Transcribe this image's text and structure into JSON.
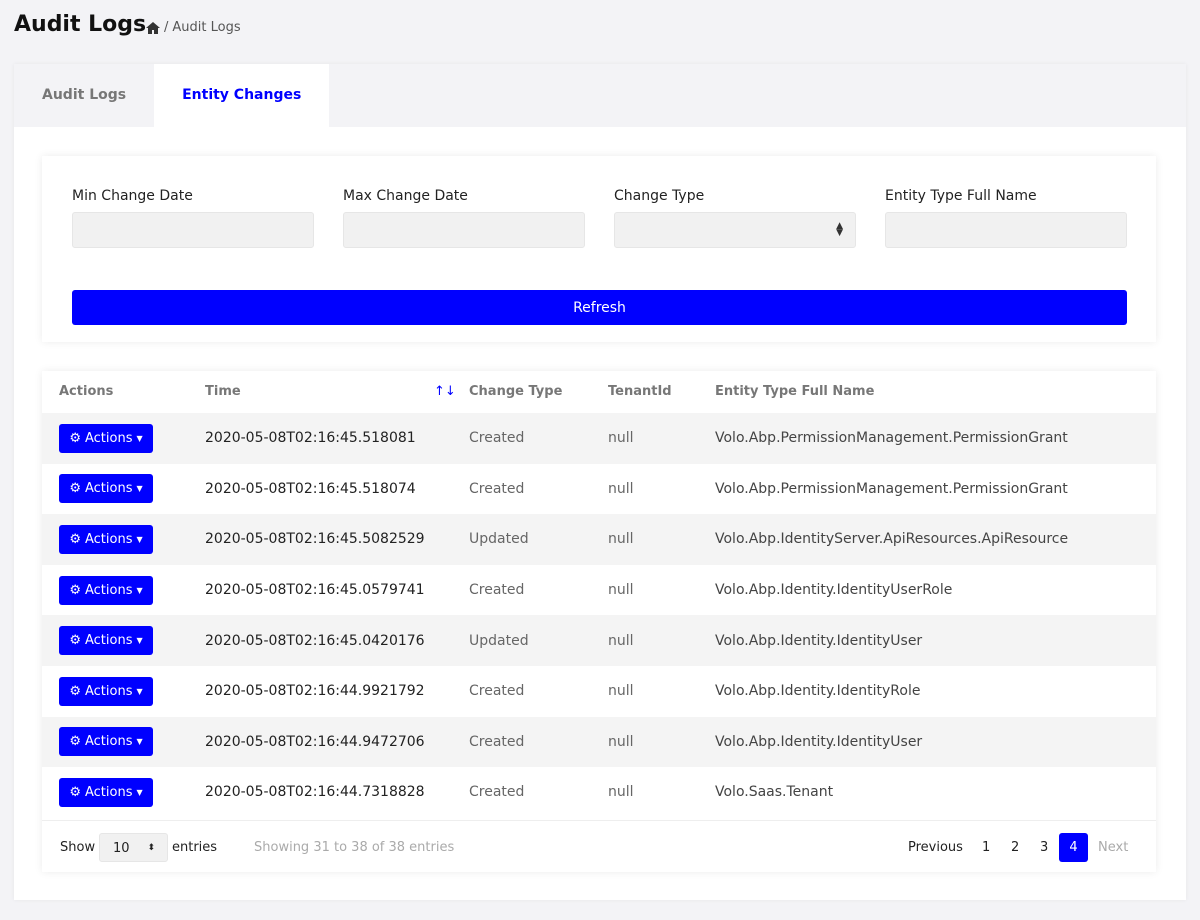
{
  "header": {
    "title": "Audit Logs",
    "breadcrumb": {
      "home_icon": "home-icon",
      "current": "Audit Logs"
    }
  },
  "tabs": [
    {
      "label": "Audit Logs",
      "active": false
    },
    {
      "label": "Entity Changes",
      "active": true
    }
  ],
  "filters": {
    "min_date_label": "Min Change Date",
    "max_date_label": "Max Change Date",
    "change_type_label": "Change Type",
    "entity_type_label": "Entity Type Full Name",
    "refresh_label": "Refresh"
  },
  "table": {
    "headers": [
      "Actions",
      "Time",
      "Change Type",
      "TenantId",
      "Entity Type Full Name"
    ],
    "action_label": "Actions",
    "rows": [
      {
        "time": "2020-05-08T02:16:45.518081",
        "type": "Created",
        "tenant": "null",
        "entity": "Volo.Abp.PermissionManagement.PermissionGrant"
      },
      {
        "time": "2020-05-08T02:16:45.518074",
        "type": "Created",
        "tenant": "null",
        "entity": "Volo.Abp.PermissionManagement.PermissionGrant"
      },
      {
        "time": "2020-05-08T02:16:45.5082529",
        "type": "Updated",
        "tenant": "null",
        "entity": "Volo.Abp.IdentityServer.ApiResources.ApiResource"
      },
      {
        "time": "2020-05-08T02:16:45.0579741",
        "type": "Created",
        "tenant": "null",
        "entity": "Volo.Abp.Identity.IdentityUserRole"
      },
      {
        "time": "2020-05-08T02:16:45.0420176",
        "type": "Updated",
        "tenant": "null",
        "entity": "Volo.Abp.Identity.IdentityUser"
      },
      {
        "time": "2020-05-08T02:16:44.9921792",
        "type": "Created",
        "tenant": "null",
        "entity": "Volo.Abp.Identity.IdentityRole"
      },
      {
        "time": "2020-05-08T02:16:44.9472706",
        "type": "Created",
        "tenant": "null",
        "entity": "Volo.Abp.Identity.IdentityUser"
      },
      {
        "time": "2020-05-08T02:16:44.7318828",
        "type": "Created",
        "tenant": "null",
        "entity": "Volo.Saas.Tenant"
      }
    ]
  },
  "footer": {
    "show": "Show",
    "page_size": "10",
    "entries": "entries",
    "info": "Showing 31 to 38 of 38 entries",
    "previous": "Previous",
    "pages": [
      "1",
      "2",
      "3",
      "4"
    ],
    "current_page": "4",
    "next": "Next"
  },
  "colors": {
    "accent": "#0000ff",
    "background": "#f3f3f6"
  }
}
